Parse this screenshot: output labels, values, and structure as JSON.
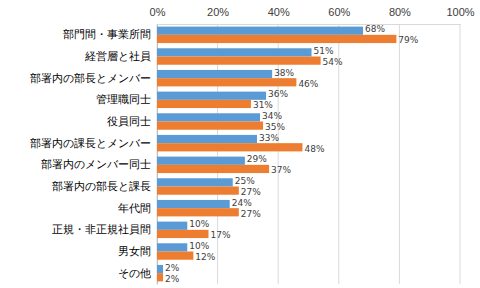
{
  "chart_data": {
    "type": "bar",
    "orientation": "horizontal",
    "categories": [
      "部門間・事業所間",
      "経営層と社員",
      "部署内の部長とメンバー",
      "管理職同士",
      "役員同士",
      "部署内の課長とメンバー",
      "部署内のメンバー同士",
      "部署内の部長と課長",
      "年代間",
      "正規・非正規社員間",
      "男女間",
      "その他"
    ],
    "series": [
      {
        "color": "#5b9bd5",
        "values": [
          68,
          51,
          38,
          36,
          34,
          33,
          29,
          25,
          24,
          10,
          10,
          2
        ],
        "value_labels": [
          "68%",
          "51%",
          "38%",
          "36%",
          "34%",
          "33%",
          "29%",
          "25%",
          "24%",
          "10%",
          "10%",
          "2%"
        ]
      },
      {
        "color": "#ed7d31",
        "values": [
          79,
          54,
          46,
          31,
          35,
          48,
          37,
          27,
          27,
          17,
          12,
          2
        ],
        "value_labels": [
          "79%",
          "54%",
          "46%",
          "31%",
          "35%",
          "48%",
          "37%",
          "27%",
          "27%",
          "17%",
          "12%",
          "2%"
        ]
      }
    ],
    "xlim": [
      0,
      100
    ],
    "xticks": [
      {
        "value": 0,
        "label": "0%"
      },
      {
        "value": 20,
        "label": "20%"
      },
      {
        "value": 40,
        "label": "40%"
      },
      {
        "value": 60,
        "label": "60%"
      },
      {
        "value": 80,
        "label": "80%"
      },
      {
        "value": 100,
        "label": "100%"
      }
    ],
    "grid": true,
    "data_labels": true
  }
}
